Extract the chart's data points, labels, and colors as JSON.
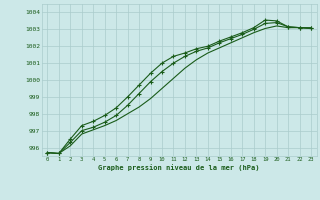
{
  "title": "Graphe pression niveau de la mer (hPa)",
  "background_color": "#cce8e8",
  "grid_color": "#aacccc",
  "line_color": "#1a5c1a",
  "x_ticks": [
    0,
    1,
    2,
    3,
    4,
    5,
    6,
    7,
    8,
    9,
    10,
    11,
    12,
    13,
    14,
    15,
    16,
    17,
    18,
    19,
    20,
    21,
    22,
    23
  ],
  "ylim": [
    995.5,
    1004.5
  ],
  "y_ticks": [
    996,
    997,
    998,
    999,
    1000,
    1001,
    1002,
    1003,
    1004
  ],
  "series1": [
    995.7,
    995.65,
    996.1,
    996.8,
    997.05,
    997.3,
    997.6,
    998.0,
    998.4,
    998.9,
    999.5,
    1000.1,
    1000.7,
    1001.2,
    1001.6,
    1001.9,
    1002.2,
    1002.5,
    1002.8,
    1003.05,
    1003.2,
    1003.1,
    1003.1,
    1003.1
  ],
  "series2": [
    995.7,
    995.65,
    996.3,
    997.0,
    997.2,
    997.5,
    997.9,
    998.5,
    999.2,
    999.9,
    1000.5,
    1001.0,
    1001.4,
    1001.7,
    1001.9,
    1002.2,
    1002.45,
    1002.7,
    1003.0,
    1003.35,
    1003.4,
    1003.15,
    1003.1,
    1003.05
  ],
  "series3": [
    995.7,
    995.65,
    996.5,
    997.3,
    997.55,
    997.9,
    998.35,
    999.0,
    999.7,
    1000.4,
    1001.0,
    1001.4,
    1001.6,
    1001.85,
    1002.0,
    1002.3,
    1002.55,
    1002.8,
    1003.1,
    1003.55,
    1003.5,
    1003.15,
    1003.1,
    1003.05
  ]
}
